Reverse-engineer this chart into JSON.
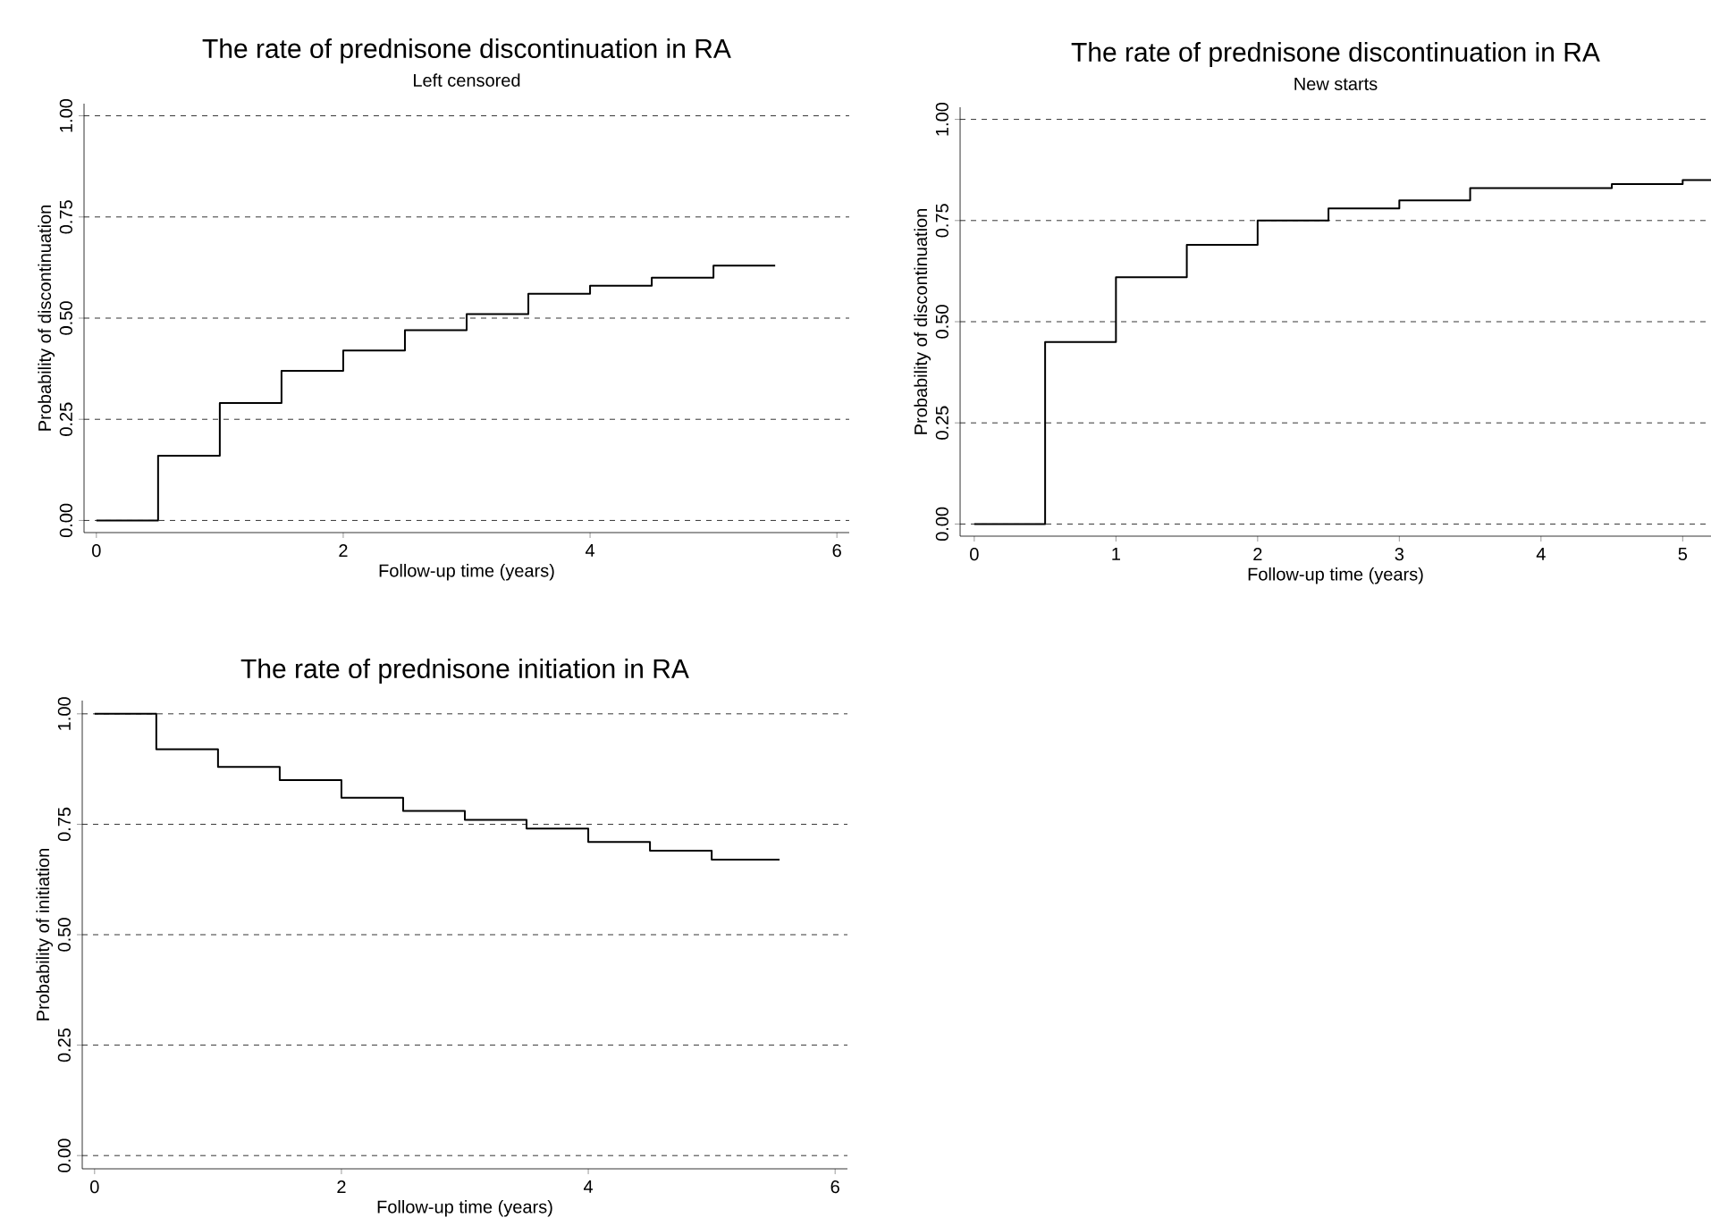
{
  "chart_data": [
    {
      "type": "step",
      "title": "The rate of prednisone discontinuation in RA",
      "subtitle": "Left censored",
      "xlabel": "Follow-up time (years)",
      "ylabel": "Probability of discontinuation",
      "color": "#000000",
      "grid": "y",
      "x": [
        0,
        0.5,
        1,
        1.5,
        2,
        2.5,
        3,
        3.5,
        4,
        4.5,
        5,
        5.5
      ],
      "values": [
        0,
        0.16,
        0.29,
        0.37,
        0.42,
        0.47,
        0.51,
        0.56,
        0.58,
        0.6,
        0.63,
        0.63
      ],
      "xlim": [
        -0.1,
        6.1
      ],
      "ylim": [
        -0.03,
        1.03
      ],
      "xticks": [
        0,
        2,
        4,
        6
      ],
      "yticks": [
        {
          "value": 0,
          "label": "0.00"
        },
        {
          "value": 0.25,
          "label": "0.25"
        },
        {
          "value": 0.5,
          "label": "0.50"
        },
        {
          "value": 0.75,
          "label": "0.75"
        },
        {
          "value": 1,
          "label": "1.00"
        }
      ]
    },
    {
      "type": "step",
      "title": "The rate of prednisone discontinuation in RA",
      "subtitle": "New starts",
      "xlabel": "Follow-up time (years)",
      "ylabel": "Probability of discontinuation",
      "color": "#000000",
      "grid": "y",
      "x": [
        0,
        0.5,
        1,
        1.5,
        2,
        2.5,
        3,
        3.5,
        4.5,
        5,
        5.2
      ],
      "values": [
        0,
        0.45,
        0.61,
        0.69,
        0.75,
        0.78,
        0.8,
        0.83,
        0.84,
        0.85,
        0.85
      ],
      "xlim": [
        -0.1,
        5.2
      ],
      "ylim": [
        -0.03,
        1.03
      ],
      "xticks": [
        0,
        1,
        2,
        3,
        4,
        5
      ],
      "yticks": [
        {
          "value": 0,
          "label": "0.00"
        },
        {
          "value": 0.25,
          "label": "0.25"
        },
        {
          "value": 0.5,
          "label": "0.50"
        },
        {
          "value": 0.75,
          "label": "0.75"
        },
        {
          "value": 1,
          "label": "1.00"
        }
      ]
    },
    {
      "type": "step",
      "title": "The rate of prednisone initiation in RA",
      "xlabel": "Follow-up time (years)",
      "ylabel": "Probability of initiation",
      "color": "#000000",
      "grid": "y",
      "x": [
        0,
        0.5,
        1,
        1.5,
        2,
        2.5,
        3,
        3.5,
        4,
        4.5,
        5,
        5.55
      ],
      "values": [
        1,
        0.92,
        0.88,
        0.85,
        0.81,
        0.78,
        0.76,
        0.74,
        0.71,
        0.69,
        0.67,
        0.67
      ],
      "xlim": [
        -0.1,
        6.1
      ],
      "ylim": [
        -0.03,
        1.03
      ],
      "xticks": [
        0,
        2,
        4,
        6
      ],
      "yticks": [
        {
          "value": 0,
          "label": "0.00"
        },
        {
          "value": 0.25,
          "label": "0.25"
        },
        {
          "value": 0.5,
          "label": "0.50"
        },
        {
          "value": 0.75,
          "label": "0.75"
        },
        {
          "value": 1,
          "label": "1.00"
        }
      ]
    }
  ]
}
